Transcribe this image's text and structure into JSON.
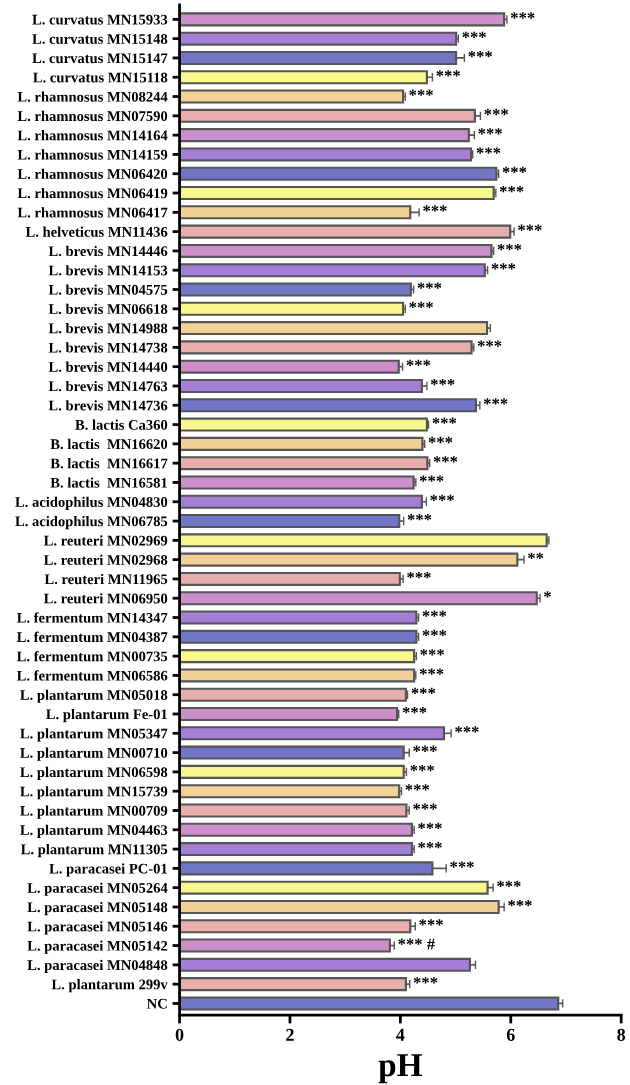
{
  "chart_data": {
    "type": "bar",
    "orientation": "horizontal",
    "xlabel": "pH",
    "xlim": [
      0,
      8
    ],
    "xticks": [
      0,
      2,
      4,
      6,
      8
    ],
    "grid": false,
    "legend": false,
    "categories": [
      "L. curvatus MN15933",
      "L. curvatus MN15148",
      "L. curvatus MN15147",
      "L. curvatus MN15118",
      "L. rhamnosus MN08244",
      "L. rhamnosus MN07590",
      "L. rhamnosus MN14164",
      "L. rhamnosus MN14159",
      "L. rhamnosus MN06420",
      "L. rhamnosus MN06419",
      "L. rhamnosus MN06417",
      "L. helveticus MN11436",
      "L. brevis MN14446",
      "L. brevis MN14153",
      "L. brevis MN04575",
      "L. brevis MN06618",
      "L. brevis MN14988",
      "L. brevis MN14738",
      "L. brevis MN14440",
      "L. brevis MN14763",
      "L. brevis MN14736",
      "B. lactis Ca360",
      "B. lactis  MN16620",
      "B. lactis  MN16617",
      "B. lactis  MN16581",
      "L. acidophilus MN04830",
      "L. acidophilus MN06785",
      "L. reuteri MN02969",
      "L. reuteri MN02968",
      "L. reuteri MN11965",
      "L. reuteri MN06950",
      "L. fermentum MN14347",
      "L. fermentum MN04387",
      "L. fermentum MN00735",
      "L. fermentum MN06586",
      "L. plantarum MN05018",
      "L. plantarum Fe-01",
      "L. plantarum MN05347",
      "L. plantarum MN00710",
      "L. plantarum MN06598",
      "L. plantarum MN15739",
      "L. plantarum MN00709",
      "L. plantarum MN04463",
      "L. plantarum MN11305",
      "L. paracasei PC-01",
      "L. paracasei MN05264",
      "L. paracasei MN05148",
      "L. paracasei MN05146",
      "L. paracasei MN05142",
      "L. paracasei MN04848",
      "L. plantarum 299v",
      "NC"
    ],
    "values": [
      5.88,
      5.01,
      5.01,
      4.48,
      4.05,
      5.35,
      5.24,
      5.28,
      5.74,
      5.69,
      4.18,
      5.99,
      5.65,
      5.53,
      4.19,
      4.05,
      5.57,
      5.29,
      3.97,
      4.39,
      5.37,
      4.48,
      4.4,
      4.49,
      4.24,
      4.39,
      3.98,
      6.65,
      6.12,
      3.99,
      6.47,
      4.29,
      4.29,
      4.25,
      4.25,
      4.1,
      3.94,
      4.79,
      4.06,
      4.06,
      3.98,
      4.11,
      4.21,
      4.21,
      4.58,
      5.58,
      5.78,
      4.18,
      3.81,
      5.26,
      4.1,
      6.86
    ],
    "errors": [
      0.05,
      0.04,
      0.15,
      0.1,
      0.04,
      0.1,
      0.1,
      0.03,
      0.04,
      0.04,
      0.16,
      0.07,
      0.04,
      0.05,
      0.05,
      0.04,
      0.06,
      0.04,
      0.07,
      0.09,
      0.07,
      0.03,
      0.04,
      0.04,
      0.04,
      0.08,
      0.08,
      0.04,
      0.12,
      0.06,
      0.06,
      0.04,
      0.04,
      0.04,
      0.03,
      0.03,
      0.03,
      0.13,
      0.1,
      0.05,
      0.04,
      0.05,
      0.04,
      0.04,
      0.25,
      0.1,
      0.1,
      0.09,
      0.08,
      0.1,
      0.07,
      0.08
    ],
    "colors": [
      "#cc8fcc",
      "#a57fd6",
      "#7075c6",
      "#f8f88f",
      "#f2d196",
      "#e8adad",
      "#cc8fcc",
      "#a57fd6",
      "#7075c6",
      "#f8f88f",
      "#f2d196",
      "#e8adad",
      "#cc8fcc",
      "#a57fd6",
      "#7075c6",
      "#f8f88f",
      "#f2d196",
      "#e8adad",
      "#cc8fcc",
      "#a57fd6",
      "#7075c6",
      "#f8f88f",
      "#f2d196",
      "#e8adad",
      "#cc8fcc",
      "#a57fd6",
      "#7075c6",
      "#f8f88f",
      "#f2d196",
      "#e8adad",
      "#cc8fcc",
      "#a57fd6",
      "#7075c6",
      "#f8f88f",
      "#f2d196",
      "#e8adad",
      "#cc8fcc",
      "#a57fd6",
      "#7075c6",
      "#f8f88f",
      "#f2d196",
      "#e8adad",
      "#cc8fcc",
      "#a57fd6",
      "#7075c6",
      "#f8f88f",
      "#f2d196",
      "#e8adad",
      "#cc8fcc",
      "#a57fd6",
      "#e8adad",
      "#7075c6"
    ],
    "value_labels": [
      "***",
      "***",
      "***",
      "***",
      "***",
      "***",
      "***",
      "***",
      "***",
      "***",
      "***",
      "***",
      "***",
      "***",
      "***",
      "***",
      null,
      "***",
      "***",
      "***",
      "***",
      "***",
      "***",
      "***",
      "***",
      "***",
      "***",
      null,
      "**",
      "***",
      "*",
      "***",
      "***",
      "***",
      "***",
      "***",
      "***",
      "***",
      "***",
      "***",
      "***",
      "***",
      "***",
      "***",
      "***",
      "***",
      "***",
      "***",
      "*** #",
      null,
      "***",
      null
    ]
  }
}
